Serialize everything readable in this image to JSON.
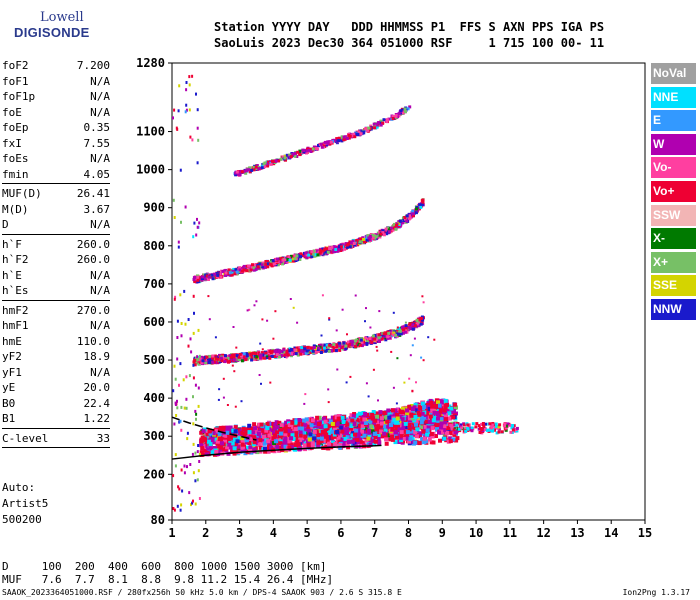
{
  "logo": {
    "line1": "Lowell",
    "line2": "DIGISONDE"
  },
  "header": {
    "line1": "Station YYYY DAY   DDD HHMMSS P1  FFS S AXN PPS IGA PS",
    "line2": "SaoLuis 2023 Dec30 364 051000 RSF     1 715 100 00- 11"
  },
  "params": {
    "group1": [
      {
        "name": "foF2",
        "value": "7.200"
      },
      {
        "name": "foF1",
        "value": "N/A"
      },
      {
        "name": "foF1p",
        "value": "N/A"
      },
      {
        "name": "foE",
        "value": "N/A"
      },
      {
        "name": "foEp",
        "value": "0.35"
      },
      {
        "name": "fxI",
        "value": "7.55"
      },
      {
        "name": "foEs",
        "value": "N/A"
      },
      {
        "name": "fmin",
        "value": "4.05"
      }
    ],
    "group2": [
      {
        "name": "MUF(D)",
        "value": "26.41"
      },
      {
        "name": "M(D)",
        "value": "3.67"
      },
      {
        "name": "D",
        "value": "N/A"
      }
    ],
    "group3": [
      {
        "name": "h`F",
        "value": "260.0"
      },
      {
        "name": "h`F2",
        "value": "260.0"
      },
      {
        "name": "h`E",
        "value": "N/A"
      },
      {
        "name": "h`Es",
        "value": "N/A"
      }
    ],
    "group4": [
      {
        "name": "hmF2",
        "value": "270.0"
      },
      {
        "name": "hmF1",
        "value": "N/A"
      },
      {
        "name": "hmE",
        "value": "110.0"
      },
      {
        "name": "yF2",
        "value": "18.9"
      },
      {
        "name": "yF1",
        "value": "N/A"
      },
      {
        "name": "yE",
        "value": "20.0"
      },
      {
        "name": "B0",
        "value": "22.4"
      },
      {
        "name": "B1",
        "value": "1.22"
      }
    ],
    "group5": [
      {
        "name": "C-level",
        "value": "33"
      }
    ]
  },
  "auto": {
    "line1": "Auto:",
    "line2": "Artist5",
    "line3": "500200"
  },
  "legend": [
    {
      "label": "NoVal",
      "color": "#a0a0a0"
    },
    {
      "label": "NNE",
      "color": "#00e0ff"
    },
    {
      "label": "E",
      "color": "#3399ff"
    },
    {
      "label": "W",
      "color": "#b000b0"
    },
    {
      "label": "Vo-",
      "color": "#ff3fa0"
    },
    {
      "label": "Vo+",
      "color": "#ee0033"
    },
    {
      "label": "SSW",
      "color": "#f2b5b5"
    },
    {
      "label": "X-",
      "color": "#007a00"
    },
    {
      "label": "X+",
      "color": "#77c066"
    },
    {
      "label": "SSE",
      "color": "#d4d400"
    },
    {
      "label": "NNW",
      "color": "#1a1acc"
    }
  ],
  "muf_table": {
    "row1": "D     100  200  400  600  800 1000 1500 3000 [km]",
    "row2": "MUF   7.6  7.7  8.1  8.8  9.8 11.2 15.4 26.4 [MHz]"
  },
  "footer": "SAAOK_2023364051000.RSF / 280fx256h 50 kHz 5.0 km / DPS-4 SAAOK 903 / 2.6 S 315.8 E",
  "version": "Ion2Png 1.3.17",
  "chart_data": {
    "type": "scatter",
    "xlim": [
      1,
      15
    ],
    "ylim": [
      80,
      1280
    ],
    "x_ticks": [
      1,
      2,
      3,
      4,
      5,
      6,
      7,
      8,
      9,
      10,
      11,
      12,
      13,
      14,
      15
    ],
    "y_ticks": [
      80,
      200,
      300,
      400,
      500,
      600,
      700,
      800,
      900,
      1000,
      1100,
      1280
    ],
    "series": [
      {
        "name": "F2 1st-hop trace",
        "x": [
          1.9,
          2.5,
          3.5,
          4.5,
          5.5,
          6.3,
          7.0,
          7.5,
          8.0,
          8.4,
          8.8,
          9.1
        ],
        "y": [
          300,
          305,
          310,
          318,
          322,
          328,
          333,
          340,
          350,
          360,
          365,
          360
        ]
      },
      {
        "name": "F 2nd-hop trace",
        "x": [
          1.6,
          2.0,
          3.0,
          4.0,
          5.0,
          6.0,
          7.0,
          7.6,
          8.0,
          8.4
        ],
        "y": [
          500,
          505,
          510,
          520,
          530,
          540,
          560,
          575,
          590,
          610
        ]
      },
      {
        "name": "F 3rd-hop trace",
        "x": [
          1.6,
          2.0,
          3.0,
          4.0,
          5.0,
          6.0,
          7.0,
          7.5,
          8.0,
          8.4
        ],
        "y": [
          715,
          722,
          740,
          760,
          780,
          800,
          830,
          850,
          880,
          920
        ]
      },
      {
        "name": "F 4th-hop trace",
        "x": [
          2.8,
          3.5,
          4.5,
          5.5,
          6.5,
          7.5,
          8.0
        ],
        "y": [
          990,
          1010,
          1040,
          1070,
          1100,
          1140,
          1170
        ]
      }
    ],
    "model_profile": {
      "lower_curve": {
        "x": [
          1.0,
          2.0,
          3.0,
          4.0,
          5.0,
          6.0,
          7.0,
          7.2
        ],
        "y": [
          240,
          250,
          258,
          263,
          268,
          272,
          275,
          276
        ]
      },
      "upper_curve": {
        "x": [
          1.0,
          1.5,
          2.0,
          2.5,
          3.0,
          3.5
        ],
        "y": [
          350,
          335,
          322,
          310,
          300,
          290
        ]
      }
    }
  }
}
